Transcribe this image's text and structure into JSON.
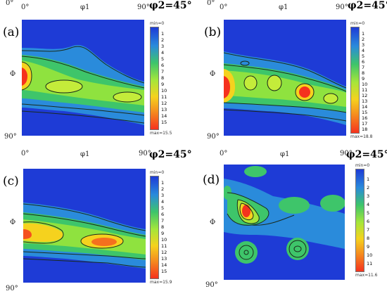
{
  "panels": [
    {
      "id": "a",
      "letter": "(a)",
      "x_start": "0°",
      "x_mid": "φ1",
      "x_end": "90°",
      "y_top": "0°",
      "y_mid": "Φ",
      "y_bottom": "90°",
      "phi2_label": "φ2=45°",
      "cbar_min": "min=0",
      "cbar_max": "max=15.5",
      "cbar_ticks": [
        "1",
        "2",
        "3",
        "4",
        "5",
        "6",
        "7",
        "8",
        "9",
        "10",
        "11",
        "12",
        "13",
        "14",
        "15"
      ]
    },
    {
      "id": "b",
      "letter": "(b)",
      "x_start": "0°",
      "x_mid": "φ1",
      "x_end": "90°",
      "y_top": "0°",
      "y_mid": "Φ",
      "y_bottom": "90°",
      "phi2_label": "φ2=45°",
      "cbar_min": "min=0",
      "cbar_max": "max=18.8",
      "cbar_ticks": [
        "1",
        "2",
        "3",
        "4",
        "5",
        "6",
        "7",
        "8",
        "9",
        "10",
        "11",
        "12",
        "13",
        "14",
        "15",
        "16",
        "17",
        "18"
      ]
    },
    {
      "id": "c",
      "letter": "(c)",
      "x_start": "0°",
      "x_mid": "φ1",
      "x_end": "90°",
      "y_top": "",
      "y_mid": "Φ",
      "y_bottom": "90°",
      "phi2_label": "φ2=45°",
      "cbar_min": "min=0",
      "cbar_max": "max=15.9",
      "cbar_ticks": [
        "1",
        "2",
        "3",
        "4",
        "5",
        "6",
        "7",
        "8",
        "9",
        "10",
        "11",
        "12",
        "13",
        "14",
        "15"
      ]
    },
    {
      "id": "d",
      "letter": "(d)",
      "x_start": "0°",
      "x_mid": "φ1",
      "x_end": "90°",
      "y_top": "",
      "y_mid": "Φ",
      "y_bottom": "90°",
      "phi2_label": "φ2=45°",
      "cbar_min": "min=0",
      "cbar_max": "max=11.6",
      "cbar_ticks": [
        "1",
        "2",
        "3",
        "4",
        "5",
        "6",
        "7",
        "8",
        "9",
        "10",
        "11"
      ]
    }
  ],
  "colors": {
    "background_low": "#1e3bd6",
    "low_mid": "#2a8bdb",
    "mid": "#3ec56a",
    "mid_high": "#a6e63a",
    "high": "#f5d21e",
    "peak": "#f5321e",
    "contour": "#1a2a1a"
  }
}
